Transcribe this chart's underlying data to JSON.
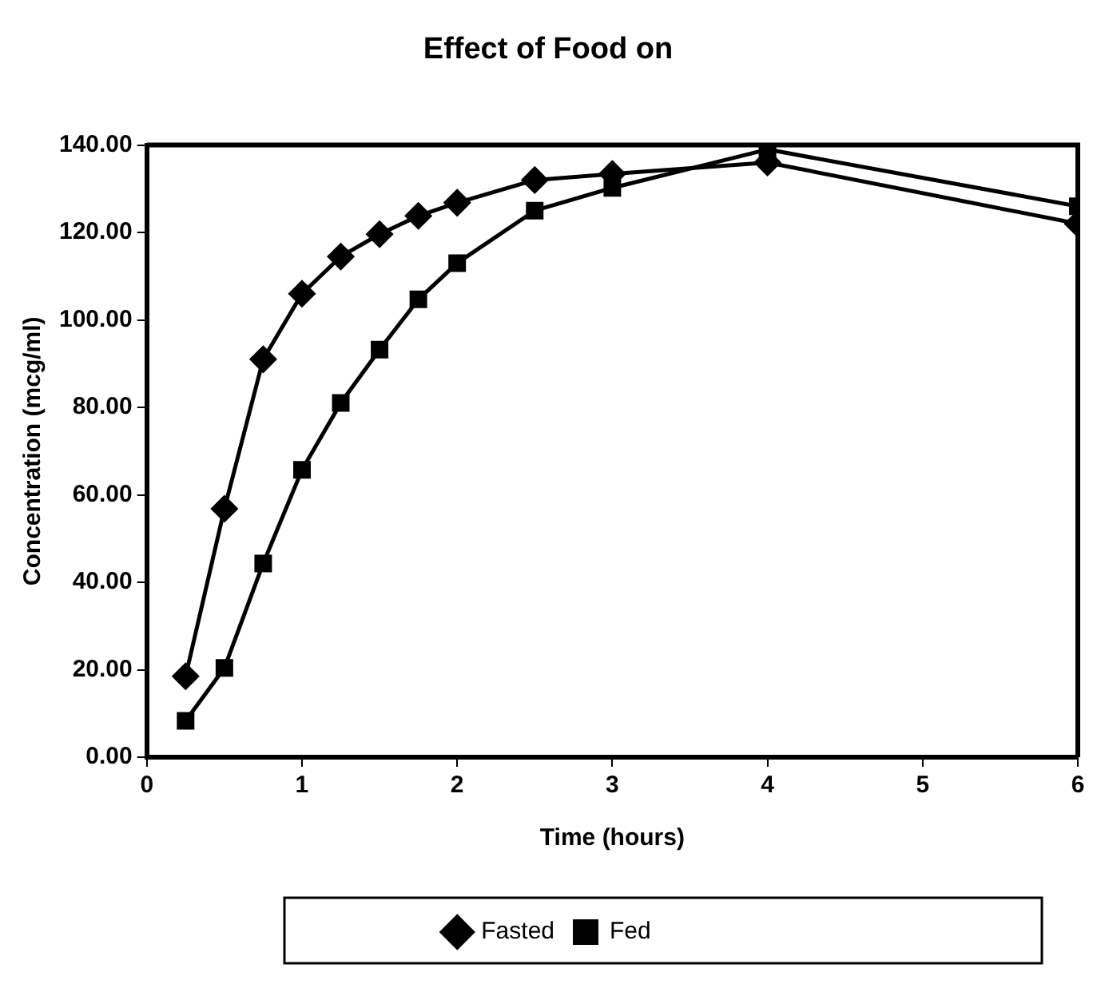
{
  "chart_data": {
    "type": "line",
    "title": "Effect of Food on",
    "xlabel": "Time (hours)",
    "ylabel": "Concentration (mcg/ml)",
    "x": [
      0.25,
      0.5,
      0.75,
      1,
      1.25,
      1.5,
      1.75,
      2,
      2.5,
      3,
      4,
      6
    ],
    "series": [
      {
        "name": "Fasted",
        "color": "#000000",
        "marker": "diamond",
        "values": [
          18.5,
          56.8,
          91,
          106,
          114.5,
          119.6,
          123.8,
          126.8,
          132,
          133.4,
          136,
          122
        ]
      },
      {
        "name": "Fed",
        "color": "#000000",
        "marker": "square",
        "values": [
          8.3,
          20.4,
          44.3,
          65.7,
          81,
          93.2,
          104.7,
          113,
          125,
          130.2,
          139,
          126
        ]
      }
    ],
    "xlim": [
      0,
      6
    ],
    "xticks": [
      0,
      1,
      2,
      3,
      4,
      5,
      6
    ],
    "ylim": [
      0,
      140
    ],
    "yticks": [
      {
        "value": 0,
        "label": "0.00"
      },
      {
        "value": 20,
        "label": "20.00"
      },
      {
        "value": 40,
        "label": "40.00"
      },
      {
        "value": 60,
        "label": "60.00"
      },
      {
        "value": 80,
        "label": "80.00"
      },
      {
        "value": 100,
        "label": "100.00"
      },
      {
        "value": 120,
        "label": "120.00"
      },
      {
        "value": 140,
        "label": "140.00"
      }
    ],
    "grid": false,
    "legend": "bottom",
    "line_style": "solid"
  }
}
